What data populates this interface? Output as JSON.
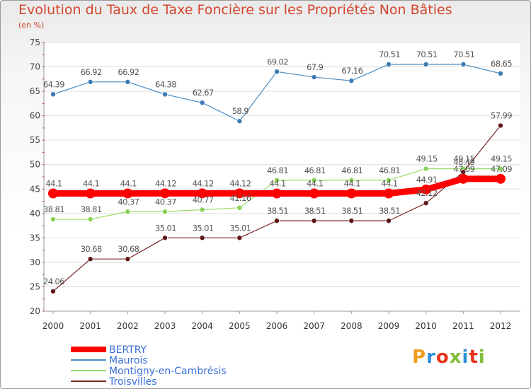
{
  "chart_data": {
    "type": "line",
    "title": "Evolution du Taux de Taxe Foncière sur les Propriétés Non Bâties",
    "subtitle": "(en %)",
    "xlabel": "",
    "ylabel": "(en %)",
    "ylim": [
      20,
      75
    ],
    "yticks": [
      20,
      25,
      30,
      35,
      40,
      45,
      50,
      55,
      60,
      65,
      70,
      75
    ],
    "categories": [
      "2000",
      "2001",
      "2002",
      "2003",
      "2004",
      "2005",
      "2006",
      "2007",
      "2008",
      "2009",
      "2010",
      "2011",
      "2012"
    ],
    "grid": "horizontal",
    "legend_position": "bottom-left",
    "series": [
      {
        "name": "Maurois",
        "color": "#4a8bc2",
        "marker": "#3a7ab5",
        "line_style": "thin",
        "values": [
          64.39,
          66.92,
          66.92,
          64.38,
          62.67,
          58.9,
          69.02,
          67.9,
          67.16,
          70.51,
          70.51,
          70.51,
          68.65
        ],
        "labels": [
          "64.39",
          "66.92",
          "66.92",
          "64.38",
          "62.67",
          "58.9",
          "69.02",
          "67.9",
          "67.16",
          "70.51",
          "70.51",
          "70.51",
          "68.65"
        ]
      },
      {
        "name": "Montigny-en-Cambrésis",
        "color": "#99dd66",
        "marker": "#88d055",
        "line_style": "thin",
        "values": [
          38.81,
          38.81,
          40.37,
          40.37,
          40.77,
          41.16,
          46.81,
          46.81,
          46.81,
          46.81,
          49.15,
          49.15,
          49.15
        ],
        "labels": [
          "38.81",
          "38.81",
          "40.37",
          "40.37",
          "40.77",
          "41.16",
          "46.81",
          "46.81",
          "46.81",
          "46.81",
          "49.15",
          "49.15",
          "49.15"
        ]
      },
      {
        "name": "Troisvilles",
        "color": "#7a2222",
        "marker": "#5e1515",
        "line_style": "thin",
        "values": [
          24.06,
          30.68,
          30.68,
          35.01,
          35.01,
          35.01,
          38.51,
          38.51,
          38.51,
          38.51,
          42.12,
          48.49,
          57.99
        ],
        "labels": [
          "24.06",
          "30.68",
          "30.68",
          "35.01",
          "35.01",
          "35.01",
          "38.51",
          "38.51",
          "38.51",
          "38.51",
          "42.12",
          "48.49",
          "57.99"
        ]
      },
      {
        "name": "BERTRY",
        "color": "#ff0000",
        "marker": "#ff0000",
        "line_style": "thick",
        "values": [
          44.1,
          44.1,
          44.1,
          44.12,
          44.12,
          44.12,
          44.1,
          44.1,
          44.1,
          44.1,
          44.91,
          47.09,
          47.09
        ],
        "labels": [
          "44.1",
          "44.1",
          "44.1",
          "44.12",
          "44.12",
          "44.12",
          "44.1",
          "44.1",
          "44.1",
          "44.1",
          "44.91",
          "47.09",
          "47.09"
        ]
      }
    ],
    "legend_order": [
      "BERTRY",
      "Maurois",
      "Montigny-en-Cambrésis",
      "Troisvilles"
    ]
  },
  "branding": {
    "logo_text": "Proxiti",
    "logo_colors": [
      "#f29a1e",
      "#2f8fd8",
      "#e8331c",
      "#7fbf3a",
      "#2f8fd8",
      "#e8331c",
      "#7fbf3a"
    ]
  }
}
